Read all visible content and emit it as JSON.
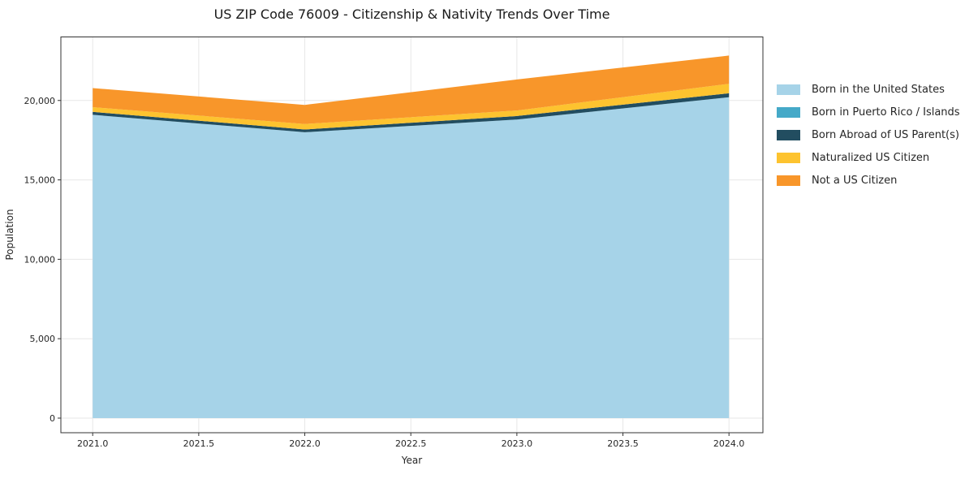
{
  "figure": {
    "title": "US ZIP Code 76009 - Citizenship & Nativity Trends Over Time"
  },
  "chart_data": {
    "type": "area",
    "stacked": true,
    "title": "US ZIP Code 76009 - Citizenship & Nativity Trends Over Time",
    "xlabel": "Year",
    "ylabel": "Population",
    "x": [
      2021,
      2022,
      2023,
      2024
    ],
    "series": [
      {
        "name": "Born in the United States",
        "color": "#a6d3e8",
        "values": [
          19100,
          18000,
          18800,
          20200
        ]
      },
      {
        "name": "Born in Puerto Rico / Islands",
        "color": "#45a9c8",
        "values": [
          0,
          0,
          0,
          0
        ]
      },
      {
        "name": "Born Abroad of US Parent(s)",
        "color": "#224d60",
        "values": [
          180,
          170,
          220,
          250
        ]
      },
      {
        "name": "Naturalized US Citizen",
        "color": "#fdc32f",
        "values": [
          300,
          350,
          350,
          600
        ]
      },
      {
        "name": "Not a US Citizen",
        "color": "#f8962a",
        "values": [
          1200,
          1200,
          1950,
          1780
        ]
      }
    ],
    "xticks": [
      2021.0,
      2021.5,
      2022.0,
      2022.5,
      2023.0,
      2023.5,
      2024.0
    ],
    "yticks": [
      0,
      5000,
      10000,
      15000,
      20000
    ],
    "xlim": [
      2020.85,
      2024.16
    ],
    "ylim": [
      -920,
      24000
    ],
    "grid": true,
    "legend_position": "right-outside"
  },
  "style_colors": {
    "grid": "#e7e7e7",
    "spine": "#333333",
    "tick_text": "#262626"
  }
}
